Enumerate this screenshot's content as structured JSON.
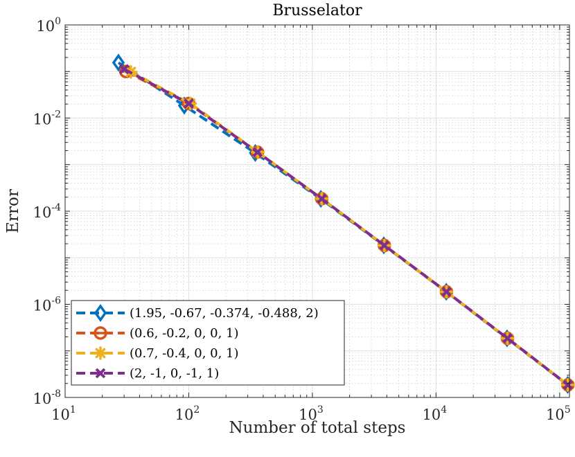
{
  "chart_data": {
    "type": "line",
    "title": "Brusselator",
    "xlabel": "Number of total steps",
    "ylabel": "Error",
    "xscale": "log",
    "yscale": "log",
    "xlim": [
      10,
      120000
    ],
    "ylim": [
      1e-08,
      1
    ],
    "x_ticks": [
      {
        "base": "10",
        "exp": "1",
        "value": 10
      },
      {
        "base": "10",
        "exp": "2",
        "value": 100
      },
      {
        "base": "10",
        "exp": "3",
        "value": 1000
      },
      {
        "base": "10",
        "exp": "4",
        "value": 10000
      },
      {
        "base": "10",
        "exp": "5",
        "value": 100000
      }
    ],
    "y_ticks": [
      {
        "base": "10",
        "exp": "0",
        "value": 1
      },
      {
        "base": "10",
        "exp": "-2",
        "value": 0.01
      },
      {
        "base": "10",
        "exp": "-4",
        "value": 0.0001
      },
      {
        "base": "10",
        "exp": "-6",
        "value": 1e-06
      },
      {
        "base": "10",
        "exp": "-8",
        "value": 1e-08
      }
    ],
    "grid": true,
    "legend_position": "bottom-left",
    "series": [
      {
        "name": "(1.95, -0.67, -0.374, -0.488, 2)",
        "color": "#0072BD",
        "marker": "diamond",
        "x": [
          27,
          92,
          345,
          1170,
          3780,
          12100,
          37500,
          116000
        ],
        "y": [
          0.155,
          0.0185,
          0.00178,
          0.000184,
          1.85e-05,
          1.86e-06,
          1.86e-07,
          1.86e-08
        ]
      },
      {
        "name": "(0.6, -0.2, 0, 0, 1)",
        "color": "#D95319",
        "marker": "circle",
        "x": [
          31,
          100,
          360,
          1190,
          3820,
          12150,
          37800,
          116500
        ],
        "y": [
          0.1,
          0.0205,
          0.00185,
          0.000185,
          1.84e-05,
          1.86e-06,
          1.86e-07,
          1.86e-08
        ]
      },
      {
        "name": "(0.7, -0.4, 0, 0, 1)",
        "color": "#EDB120",
        "marker": "star",
        "x": [
          34,
          103,
          362,
          1190,
          3820,
          12150,
          37800,
          116500
        ],
        "y": [
          0.098,
          0.0205,
          0.00185,
          0.000185,
          1.84e-05,
          1.86e-06,
          1.86e-07,
          1.86e-08
        ]
      },
      {
        "name": "(2, -1, 0, -1, 1)",
        "color": "#7E2F8E",
        "marker": "x",
        "x": [
          30,
          100,
          360,
          1190,
          3820,
          12150,
          37800,
          116500
        ],
        "y": [
          0.112,
          0.0205,
          0.00185,
          0.000185,
          1.84e-05,
          1.86e-06,
          1.86e-07,
          1.86e-08
        ]
      }
    ]
  }
}
